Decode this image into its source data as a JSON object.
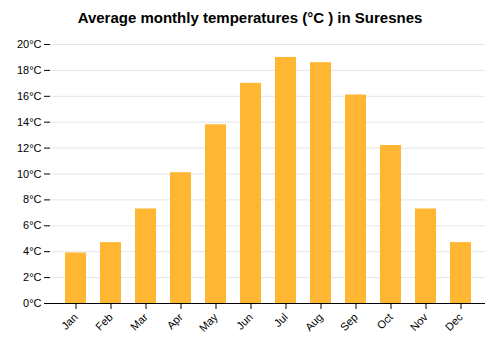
{
  "chart_data": {
    "type": "bar",
    "title": "Average monthly temperatures (°C ) in Suresnes",
    "categories": [
      "Jan",
      "Feb",
      "Mar",
      "Apr",
      "May",
      "Jun",
      "Jul",
      "Aug",
      "Sep",
      "Oct",
      "Nov",
      "Dec"
    ],
    "values": [
      3.9,
      4.7,
      7.3,
      10.1,
      13.8,
      17.0,
      19.0,
      18.6,
      16.1,
      12.2,
      7.3,
      4.7
    ],
    "color": "#FFB733",
    "ylim": [
      0,
      20
    ],
    "yticks": [
      {
        "value": 0,
        "label": "0°C"
      },
      {
        "value": 2,
        "label": "2°C"
      },
      {
        "value": 4,
        "label": "4°C"
      },
      {
        "value": 6,
        "label": "6°C"
      },
      {
        "value": 8,
        "label": "8°C"
      },
      {
        "value": 10,
        "label": "10°C"
      },
      {
        "value": 12,
        "label": "12°C"
      },
      {
        "value": 14,
        "label": "14°C"
      },
      {
        "value": 16,
        "label": "16°C"
      },
      {
        "value": 18,
        "label": "18°C"
      },
      {
        "value": 20,
        "label": "20°C"
      }
    ],
    "grid": true
  }
}
